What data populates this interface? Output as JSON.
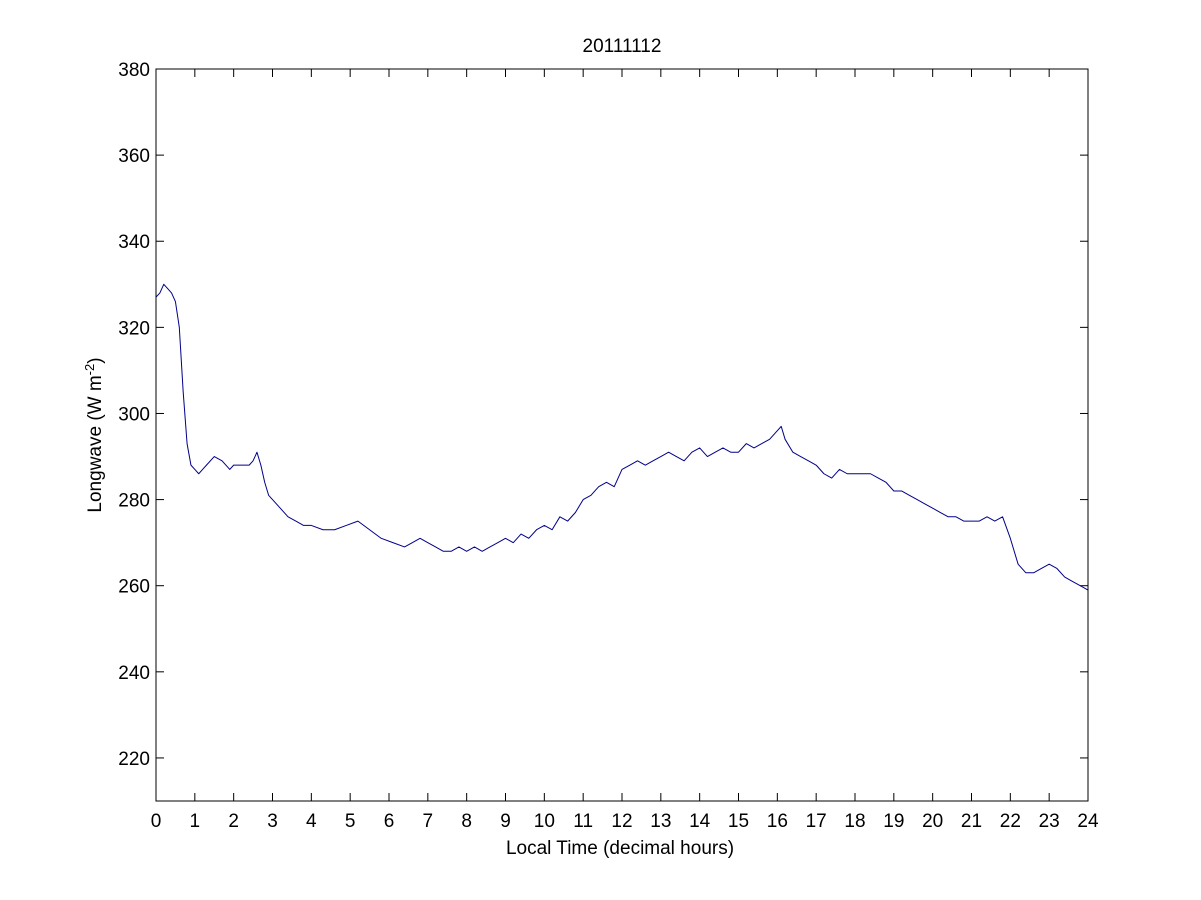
{
  "chart_data": {
    "type": "line",
    "title": "20111112",
    "xlabel": "Local Time (decimal hours)",
    "ylabel_main": "Longwave (W m",
    "ylabel_exp": "-2",
    "ylabel_close": ")",
    "xlim": [
      0,
      24
    ],
    "ylim": [
      210,
      380
    ],
    "xticks": [
      0,
      1,
      2,
      3,
      4,
      5,
      6,
      7,
      8,
      9,
      10,
      11,
      12,
      13,
      14,
      15,
      16,
      17,
      18,
      19,
      20,
      21,
      22,
      23,
      24
    ],
    "yticks": [
      220,
      240,
      260,
      280,
      300,
      320,
      340,
      360,
      380
    ],
    "grid": false,
    "series": [
      {
        "color": "#00008B",
        "x": [
          0,
          0.1,
          0.2,
          0.3,
          0.4,
          0.5,
          0.6,
          0.7,
          0.8,
          0.9,
          1.0,
          1.1,
          1.2,
          1.3,
          1.5,
          1.7,
          1.9,
          2.0,
          2.2,
          2.4,
          2.5,
          2.6,
          2.7,
          2.8,
          2.9,
          3.0,
          3.2,
          3.4,
          3.6,
          3.8,
          4.0,
          4.3,
          4.6,
          4.9,
          5.2,
          5.5,
          5.8,
          6.1,
          6.4,
          6.6,
          6.8,
          7.0,
          7.2,
          7.4,
          7.6,
          7.8,
          8.0,
          8.2,
          8.4,
          8.6,
          8.8,
          9.0,
          9.2,
          9.4,
          9.6,
          9.8,
          10.0,
          10.2,
          10.4,
          10.6,
          10.8,
          11.0,
          11.2,
          11.4,
          11.6,
          11.8,
          12.0,
          12.2,
          12.4,
          12.6,
          12.8,
          13.0,
          13.2,
          13.4,
          13.6,
          13.8,
          14.0,
          14.2,
          14.4,
          14.6,
          14.8,
          15.0,
          15.2,
          15.4,
          15.6,
          15.8,
          16.0,
          16.1,
          16.2,
          16.4,
          16.6,
          16.8,
          17.0,
          17.2,
          17.4,
          17.6,
          17.8,
          18.0,
          18.2,
          18.4,
          18.6,
          18.8,
          19.0,
          19.2,
          19.4,
          19.6,
          19.8,
          20.0,
          20.2,
          20.4,
          20.6,
          20.8,
          21.0,
          21.2,
          21.4,
          21.6,
          21.8,
          22.0,
          22.2,
          22.4,
          22.6,
          22.8,
          23.0,
          23.2,
          23.4,
          23.6,
          23.8,
          24.0
        ],
        "y": [
          327,
          328,
          330,
          329,
          328,
          326,
          320,
          305,
          293,
          288,
          287,
          286,
          287,
          288,
          290,
          289,
          287,
          288,
          288,
          288,
          289,
          291,
          288,
          284,
          281,
          280,
          278,
          276,
          275,
          274,
          274,
          273,
          273,
          274,
          275,
          273,
          271,
          270,
          269,
          270,
          271,
          270,
          269,
          268,
          268,
          269,
          268,
          269,
          268,
          269,
          270,
          271,
          270,
          272,
          271,
          273,
          274,
          273,
          276,
          275,
          277,
          280,
          281,
          283,
          284,
          283,
          287,
          288,
          289,
          288,
          289,
          290,
          291,
          290,
          289,
          291,
          292,
          290,
          291,
          292,
          291,
          291,
          293,
          292,
          293,
          294,
          296,
          297,
          294,
          291,
          290,
          289,
          288,
          286,
          285,
          287,
          286,
          286,
          286,
          286,
          285,
          284,
          282,
          282,
          281,
          280,
          279,
          278,
          277,
          276,
          276,
          275,
          275,
          275,
          276,
          275,
          276,
          271,
          265,
          263,
          263,
          264,
          265,
          264,
          262,
          261,
          260,
          259
        ]
      }
    ]
  }
}
